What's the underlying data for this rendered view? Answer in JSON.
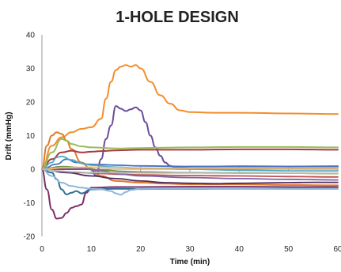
{
  "chart_data": {
    "type": "line",
    "title": "1-HOLE DESIGN",
    "xlabel": "Time (min)",
    "ylabel": "Drift (mmHg)",
    "xlim": [
      0,
      60
    ],
    "ylim": [
      -20,
      40
    ],
    "xticks": [
      0,
      10,
      20,
      30,
      40,
      50,
      60
    ],
    "yticks": [
      -20,
      -10,
      0,
      10,
      20,
      30,
      40
    ],
    "xtick_labels": [
      "0",
      "10",
      "20",
      "30",
      "40",
      "50",
      "60"
    ],
    "ytick_labels": [
      "-20",
      "-10",
      "0",
      "10",
      "20",
      "30",
      "40"
    ],
    "grid": false,
    "legend": "none",
    "series": [
      {
        "color": "#F28E2B",
        "width": 2,
        "x": [
          0,
          2,
          4,
          6,
          8,
          10,
          12,
          13,
          14,
          15,
          16,
          17,
          18,
          19,
          20,
          22,
          24,
          26,
          28,
          30,
          35,
          40,
          50,
          60
        ],
        "y": [
          0,
          7,
          9.5,
          11,
          12,
          12.5,
          15,
          21,
          26,
          29.5,
          30.5,
          31,
          30.5,
          31,
          30,
          26,
          22,
          19.5,
          17.5,
          17,
          16.8,
          16.8,
          16.6,
          16.4
        ]
      },
      {
        "color": "#6A4C9C",
        "width": 2,
        "x": [
          0,
          10,
          11,
          12,
          13,
          14,
          15,
          16,
          17,
          18,
          19,
          20,
          21,
          22,
          23,
          24,
          25,
          26,
          27,
          28,
          30,
          35,
          40,
          50,
          60
        ],
        "y": [
          0,
          0,
          -2,
          3,
          9,
          13,
          18.8,
          18,
          17.3,
          17.8,
          18.4,
          17.5,
          14,
          10,
          6.5,
          4,
          2,
          1,
          0.6,
          0.5,
          0.8,
          0.8,
          0.9,
          0.8,
          0.9
        ]
      },
      {
        "color": "#E07B29",
        "width": 2,
        "x": [
          0,
          1,
          2,
          3,
          4,
          5,
          6,
          8,
          10,
          12,
          15,
          20,
          25,
          30,
          40,
          50,
          60
        ],
        "y": [
          0,
          7,
          10,
          11,
          10.5,
          8.5,
          6,
          2,
          0,
          -2,
          -3.5,
          -4,
          -4.3,
          -4.5,
          -4.5,
          -4.7,
          -4.8
        ]
      },
      {
        "color": "#7A3068",
        "width": 2,
        "x": [
          0,
          1,
          2,
          3,
          4,
          5,
          6,
          7,
          8,
          9,
          10,
          15,
          20,
          30,
          40,
          50,
          60
        ],
        "y": [
          0,
          -6,
          -12,
          -14.7,
          -14.5,
          -13,
          -11.5,
          -11,
          -10.5,
          -7,
          -5.5,
          -5.3,
          -5.3,
          -5.2,
          -5.2,
          -5.3,
          -5.3
        ]
      },
      {
        "color": "#2F6E96",
        "width": 2,
        "x": [
          0,
          2,
          3,
          4,
          5,
          6,
          7,
          8,
          10,
          15,
          20,
          30,
          40,
          50,
          60
        ],
        "y": [
          0,
          -1,
          -3,
          -6,
          -7.5,
          -7,
          -6.5,
          -7.2,
          -6,
          -5.8,
          -5.9,
          -5.8,
          -5.8,
          -5.8,
          -5.8
        ]
      },
      {
        "color": "#A83A3A",
        "width": 2,
        "x": [
          0,
          2,
          4,
          6,
          8,
          10,
          12,
          15,
          20,
          30,
          40,
          50,
          60
        ],
        "y": [
          0,
          3,
          5,
          5.5,
          5,
          5.2,
          5.4,
          5.6,
          5.8,
          5.8,
          5.9,
          5.9,
          5.8
        ]
      },
      {
        "color": "#9BBB59",
        "width": 2,
        "x": [
          0,
          2,
          4,
          5,
          6,
          8,
          10,
          15,
          20,
          30,
          40,
          50,
          60
        ],
        "y": [
          0,
          5,
          9,
          8.5,
          7.5,
          6.8,
          6.5,
          6.2,
          6.3,
          6.5,
          6.6,
          6.6,
          6.5
        ]
      },
      {
        "color": "#8FB5DA",
        "width": 2,
        "x": [
          0,
          2,
          4,
          6,
          8,
          10,
          12,
          14,
          15,
          16,
          17,
          18,
          20,
          30,
          40,
          50,
          60
        ],
        "y": [
          0,
          -2,
          -4,
          -5,
          -5.5,
          -5.8,
          -6,
          -6.5,
          -7.2,
          -7.6,
          -6.8,
          -6.2,
          -5.8,
          -5.7,
          -5.8,
          -5.8,
          -5.8
        ]
      },
      {
        "color": "#4472C4",
        "width": 1.8,
        "x": [
          0,
          3,
          5,
          7,
          9,
          12,
          15,
          20,
          30,
          40,
          50,
          60
        ],
        "y": [
          0,
          1.5,
          3,
          2,
          1.5,
          1.4,
          1.2,
          1,
          0.8,
          0.8,
          0.8,
          0.8
        ]
      },
      {
        "color": "#4BACC6",
        "width": 1.8,
        "x": [
          0,
          2,
          3,
          4,
          6,
          8,
          10,
          15,
          20,
          30,
          40,
          50,
          60
        ],
        "y": [
          0,
          2,
          3.5,
          3.8,
          2.8,
          1.8,
          1.2,
          0.6,
          0.3,
          0,
          -0.3,
          -0.5,
          -0.5
        ]
      },
      {
        "color": "#77933C",
        "width": 1.8,
        "x": [
          0,
          4,
          8,
          12,
          16,
          20,
          30,
          40,
          50,
          60
        ],
        "y": [
          0,
          0.8,
          0.5,
          -0.2,
          -0.6,
          -0.8,
          -1,
          -1.1,
          -1.2,
          -1.3
        ]
      },
      {
        "color": "#C0504D",
        "width": 1.8,
        "x": [
          0,
          4,
          8,
          12,
          16,
          20,
          30,
          40,
          50,
          60
        ],
        "y": [
          0,
          -0.6,
          -1,
          -1.3,
          -1.5,
          -1.7,
          -1.9,
          -2,
          -2.2,
          -2.3
        ]
      },
      {
        "color": "#8064A2",
        "width": 1.8,
        "x": [
          0,
          4,
          8,
          12,
          16,
          20,
          30,
          40,
          50,
          60
        ],
        "y": [
          0,
          0.3,
          0.2,
          -0.5,
          -1.5,
          -2,
          -2.5,
          -2.8,
          -3,
          -3.2
        ]
      },
      {
        "color": "#4F2A5E",
        "width": 1.8,
        "x": [
          0,
          5,
          10,
          15,
          20,
          25,
          30,
          35,
          40,
          45,
          50,
          55,
          60
        ],
        "y": [
          0,
          -1,
          -2,
          -2.8,
          -3.5,
          -4,
          -4.2,
          -4.3,
          -4.2,
          -4.1,
          -4,
          -3.9,
          -3.9
        ]
      },
      {
        "color": "#F6B26B",
        "width": 1.8,
        "x": [
          0,
          5,
          10,
          15,
          20,
          30,
          40,
          50,
          60
        ],
        "y": [
          0,
          0.5,
          0.6,
          0.5,
          0.3,
          0.3,
          0.3,
          0.3,
          0.3
        ]
      },
      {
        "color": "#B7B7B7",
        "width": 1.8,
        "x": [
          0,
          3,
          6,
          10,
          15,
          20,
          30,
          40,
          50,
          60
        ],
        "y": [
          0,
          -0.5,
          -0.8,
          -1,
          -1,
          -1.1,
          -1.1,
          -1.2,
          -1.2,
          -1.2
        ]
      }
    ]
  }
}
